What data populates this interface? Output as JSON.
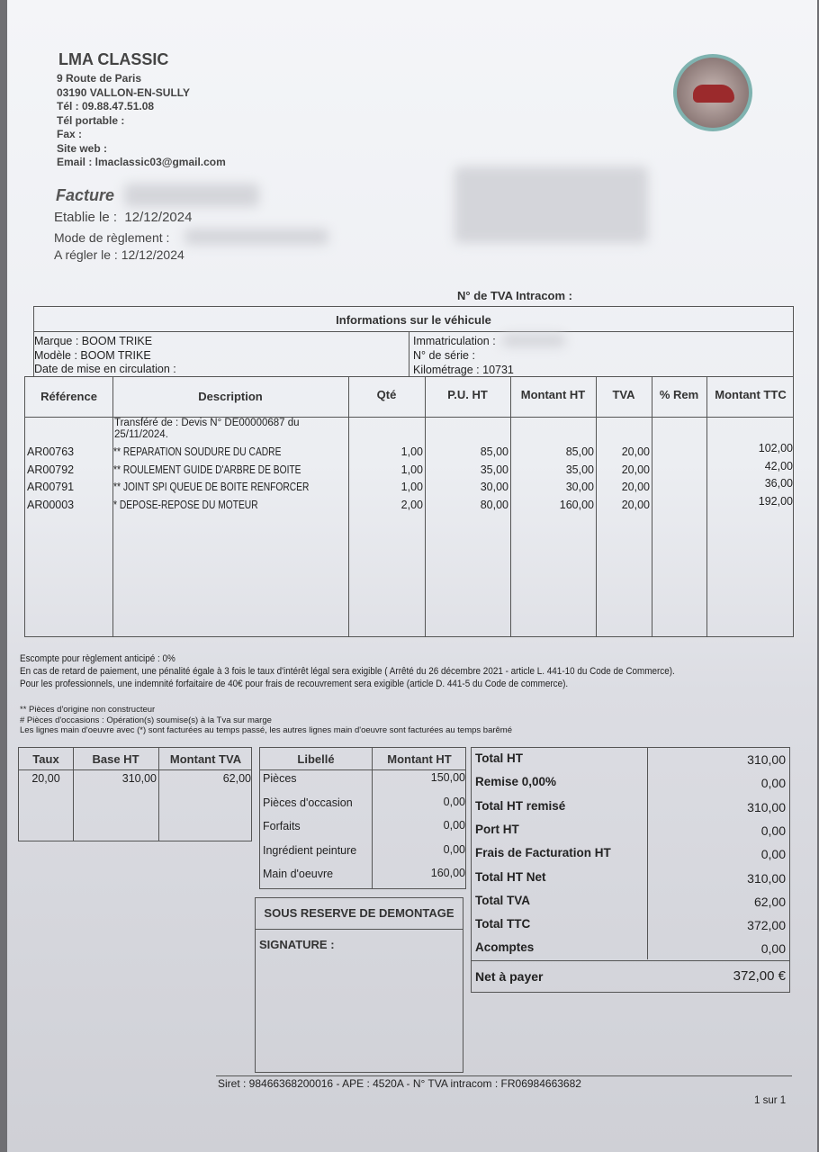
{
  "company": {
    "name": "LMA CLASSIC",
    "address1": "9 Route de Paris",
    "address2": "03190 VALLON-EN-SULLY",
    "tel": "Tél : 09.88.47.51.08",
    "mobile": "Tél portable :",
    "fax": "Fax :",
    "website": "Site web :",
    "email": "Email : lmaclassic03@gmail.com",
    "logo_text": "LMA CLASSIC"
  },
  "invoice": {
    "title": "Facture",
    "established_label": "Etablie le :",
    "established_date": "12/12/2024",
    "payment_mode_label": "Mode de règlement :",
    "due_label": "A régler le :",
    "due_date": "12/12/2024",
    "vat_intracom_label": "N° de TVA Intracom :"
  },
  "vehicle": {
    "header": "Informations sur le véhicule",
    "brand": "Marque :  BOOM TRIKE",
    "model": "Modèle :  BOOM TRIKE",
    "first_registration": "Date de mise en circulation :",
    "registration": "Immatriculation :",
    "serial": "N° de série :",
    "mileage": "Kilométrage :  10731"
  },
  "items": {
    "headers": [
      "Référence",
      "Description",
      "Qté",
      "P.U. HT",
      "Montant HT",
      "TVA",
      "% Rem",
      "Montant TTC"
    ],
    "transfer_note_1": "Transféré de : Devis N° DE00000687 du",
    "transfer_note_2": "25/11/2024.",
    "rows": [
      {
        "ref": "AR00763",
        "desc": "** REPARATION SOUDURE DU CADRE",
        "qty": "1,00",
        "pu": "85,00",
        "ht": "85,00",
        "tva": "20,00",
        "rem": "",
        "ttc": "102,00"
      },
      {
        "ref": "AR00792",
        "desc": "** ROULEMENT GUIDE D'ARBRE DE BOITE",
        "qty": "1,00",
        "pu": "35,00",
        "ht": "35,00",
        "tva": "20,00",
        "rem": "",
        "ttc": "42,00"
      },
      {
        "ref": "AR00791",
        "desc": "** JOINT SPI QUEUE DE BOITE RENFORCER",
        "qty": "1,00",
        "pu": "30,00",
        "ht": "30,00",
        "tva": "20,00",
        "rem": "",
        "ttc": "36,00"
      },
      {
        "ref": "AR00003",
        "desc": "* DEPOSE-REPOSE DU MOTEUR",
        "qty": "2,00",
        "pu": "80,00",
        "ht": "160,00",
        "tva": "20,00",
        "rem": "",
        "ttc": "192,00"
      }
    ]
  },
  "notes": {
    "discount": "Escompte pour règlement anticipé : 0%",
    "late_penalty": "En cas de retard de paiement, une pénalité égale à 3 fois le taux d'intérêt légal sera exigible ( Arrêté du 26 décembre 2021 - article L. 441-10 du Code de Commerce).",
    "professional_fee": "Pour les professionnels, une indemnité forfaitaire de 40€ pour frais de recouvrement sera exigible (article D. 441-5 du Code de commerce).",
    "legend1": "** Pièces d'origine non constructeur",
    "legend2": "# Pièces d'occasions : Opération(s) soumise(s) à la Tva sur marge",
    "legend3": "Les lignes main d'oeuvre avec (*) sont facturées au temps passé, les autres lignes main d'oeuvre sont facturées au temps barêmé"
  },
  "vat_table": {
    "headers": [
      "Taux",
      "Base HT",
      "Montant TVA"
    ],
    "row": [
      "20,00",
      "310,00",
      "62,00"
    ]
  },
  "breakdown": {
    "headers": [
      "Libellé",
      "Montant HT"
    ],
    "rows": [
      {
        "label": "Pièces",
        "value": "150,00"
      },
      {
        "label": "Pièces d'occasion",
        "value": "0,00"
      },
      {
        "label": "Forfaits",
        "value": "0,00"
      },
      {
        "label": "Ingrédient peinture",
        "value": "0,00"
      },
      {
        "label": "Main d'oeuvre",
        "value": "160,00"
      }
    ]
  },
  "reserve": {
    "title": "SOUS RESERVE DE DEMONTAGE",
    "signature": "SIGNATURE :"
  },
  "totals": {
    "rows": [
      {
        "label": "Total HT",
        "value": "310,00"
      },
      {
        "label": "Remise 0,00%",
        "value": "0,00"
      },
      {
        "label": "Total HT remisé",
        "value": "310,00"
      },
      {
        "label": "Port HT",
        "value": "0,00"
      },
      {
        "label": "Frais de Facturation HT",
        "value": "0,00"
      },
      {
        "label": "Total HT Net",
        "value": "310,00"
      },
      {
        "label": "Total TVA",
        "value": "62,00"
      },
      {
        "label": "Total TTC",
        "value": "372,00"
      },
      {
        "label": "Acomptes",
        "value": "0,00"
      }
    ],
    "net_label": "Net à payer",
    "net_value": "372,00 €"
  },
  "footer": {
    "legal": "Siret : 98466368200016 - APE : 4520A - N° TVA intracom : FR06984663682",
    "page": "1 sur 1"
  }
}
